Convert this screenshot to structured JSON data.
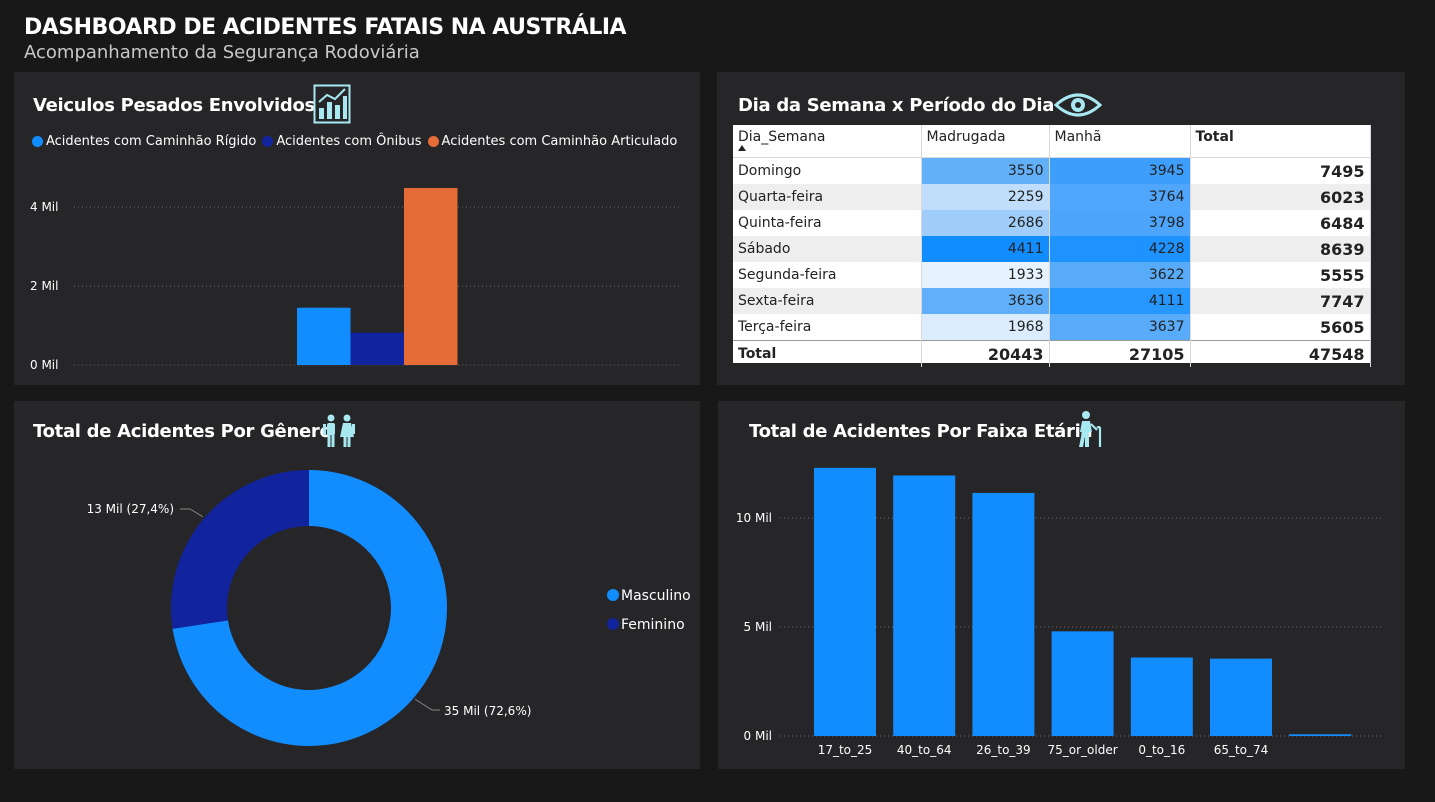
{
  "header": {
    "title": "DASHBOARD DE ACIDENTES FATAIS NA AUSTRÁLIA",
    "subtitle": "Acompanhamento da Segurança Rodoviária"
  },
  "colors": {
    "background": "#181818",
    "panel": "#262629",
    "blue": "#118dff",
    "dark_blue": "#12239e",
    "orange": "#e66c37",
    "icon": "#a8e8f0"
  },
  "panels": {
    "heavy": {
      "title": "Veiculos Pesados Envolvidos",
      "icon": "bar-chart-icon"
    },
    "matrix": {
      "title": "Dia da Semana x Período do Dia",
      "icon": "eye-icon"
    },
    "gender": {
      "title": "Total de Acidentes Por Gênero",
      "icon": "people-icon"
    },
    "age": {
      "title": "Total de Acidentes Por Faixa Etária",
      "icon": "elderly-icon"
    }
  },
  "matrix": {
    "columns": [
      "Dia_Semana",
      "Madrugada",
      "Manhã",
      "Total"
    ],
    "rows": [
      {
        "label": "Domingo",
        "madrugada": "3550",
        "manha": "3945",
        "total": "7495"
      },
      {
        "label": "Quarta-feira",
        "madrugada": "2259",
        "manha": "3764",
        "total": "6023"
      },
      {
        "label": "Quinta-feira",
        "madrugada": "2686",
        "manha": "3798",
        "total": "6484"
      },
      {
        "label": "Sábado",
        "madrugada": "4411",
        "manha": "4228",
        "total": "8639"
      },
      {
        "label": "Segunda-feira",
        "madrugada": "1933",
        "manha": "3622",
        "total": "5555"
      },
      {
        "label": "Sexta-feira",
        "madrugada": "3636",
        "manha": "4111",
        "total": "7747"
      },
      {
        "label": "Terça-feira",
        "madrugada": "1968",
        "manha": "3637",
        "total": "5605"
      }
    ],
    "totals": {
      "label": "Total",
      "madrugada": "20443",
      "manha": "27105",
      "total": "47548"
    },
    "heat_madrugada": [
      "#62b0f8",
      "#c0defc",
      "#a0cdf9",
      "#118dff",
      "#e6f2fe",
      "#60aff8",
      "#dbecfd"
    ],
    "heat_manha": [
      "#3d9efb",
      "#4fa6fa",
      "#4ca5fa",
      "#1e92ff",
      "#58abf9",
      "#2697fe",
      "#57abf9"
    ]
  },
  "chart_data": [
    {
      "type": "bar",
      "categories": [
        "Acidentes com Caminhão Rígido",
        "Acidentes com Ônibus",
        "Acidentes com Caminhão Articulado"
      ],
      "series": [
        {
          "name": "Acidentes com Caminhão Rígido",
          "values": [
            1450,
            0,
            0
          ]
        },
        {
          "name": "Acidentes com Ônibus",
          "values": [
            0,
            820,
            0
          ]
        },
        {
          "name": "Acidentes com Caminhão Articulado",
          "values": [
            0,
            0,
            4480
          ]
        }
      ],
      "values": [
        1450,
        820,
        4480
      ],
      "colors": [
        "#118dff",
        "#12239e",
        "#e66c37"
      ],
      "yticks": [
        "0 Mil",
        "2 Mil",
        "4 Mil"
      ],
      "ytick_values": [
        0,
        2000,
        4000
      ],
      "ylim": [
        0,
        4500
      ],
      "grid": true,
      "legend": "top-left"
    },
    {
      "type": "pie",
      "donut": true,
      "labels": [
        "Masculino",
        "Feminino"
      ],
      "values": [
        72.6,
        27.4
      ],
      "data_labels": [
        "35 Mil (72,6%)",
        "13 Mil (27,4%)"
      ],
      "colors": [
        "#118dff",
        "#12239e"
      ],
      "legend": "right"
    },
    {
      "type": "bar",
      "categories": [
        "17_to_25",
        "40_to_64",
        "26_to_39",
        "75_or_older",
        "0_to_16",
        "65_to_74",
        ""
      ],
      "values": [
        12300,
        11950,
        11150,
        4800,
        3600,
        3550,
        80
      ],
      "color": "#118dff",
      "yticks": [
        "0 Mil",
        "5 Mil",
        "10 Mil"
      ],
      "ytick_values": [
        0,
        5000,
        10000
      ],
      "ylim": [
        0,
        12300
      ],
      "grid": true
    }
  ]
}
